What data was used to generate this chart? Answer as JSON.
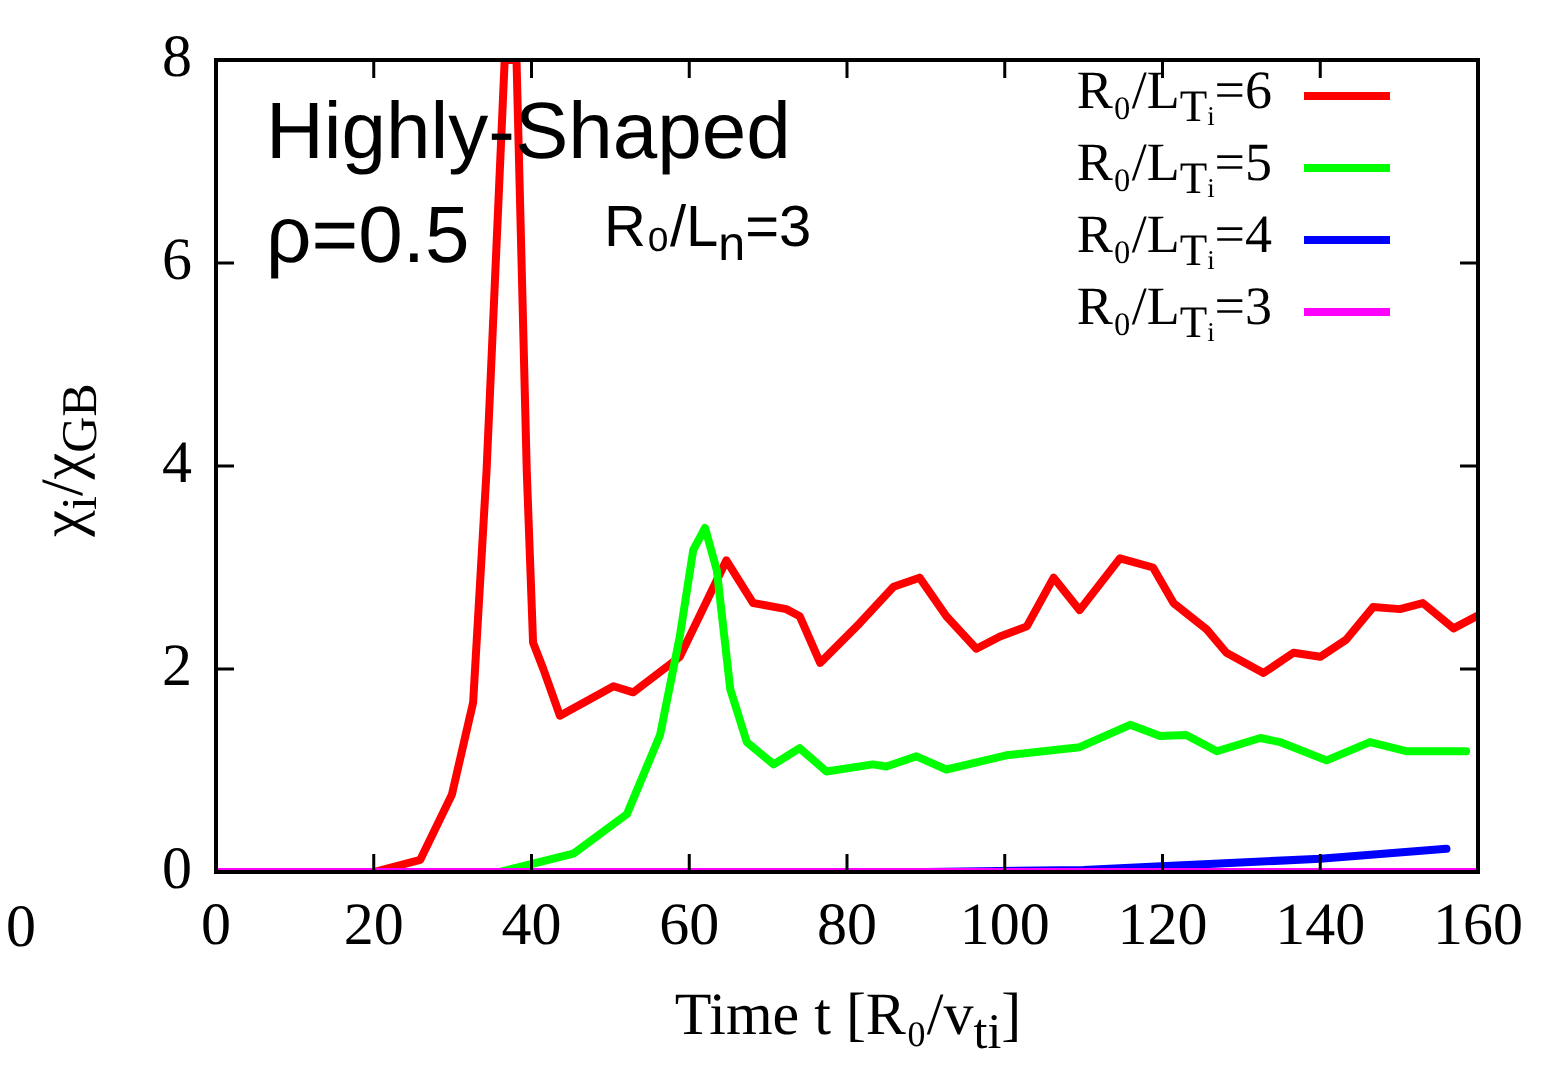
{
  "chart_data": {
    "type": "line",
    "xlabel": "Time t [R₀/v$_{ti}$]",
    "ylabel": "χ$_{i}$/χ$_{GB}$",
    "annotations": [
      "Highly-Shaped",
      "ρ=0.5",
      "R₀/L$_{n}$=3",
      "0"
    ],
    "xlim": [
      0,
      160
    ],
    "xticks": [
      0,
      20,
      40,
      60,
      80,
      100,
      120,
      140,
      160
    ],
    "ylim": [
      0,
      8
    ],
    "yticks": [
      0,
      2,
      4,
      6,
      8
    ],
    "grid": false,
    "legend": "top right",
    "marker": "none",
    "line_style": "solid",
    "series": [
      {
        "name": "R₀/L$_{Tᵢ}$=6",
        "color": "#ff0000",
        "x": [
          0,
          20,
          25.9,
          29.9,
          32.6,
          34.3,
          36.6,
          38.1,
          39.4,
          40.2,
          41.5,
          43.6,
          50.4,
          52.9,
          58.8,
          62.1,
          64.7,
          68.1,
          72.3,
          74,
          76.6,
          81.6,
          85.9,
          89.2,
          92.6,
          96.4,
          99.4,
          102.8,
          106.2,
          109.5,
          114.6,
          118.8,
          121.4,
          125.6,
          128.1,
          132.8,
          136.6,
          140,
          143.3,
          146.7,
          150.1,
          153,
          156.9,
          159.8
        ],
        "values": [
          0,
          0,
          0.12,
          0.76,
          1.67,
          3.95,
          8,
          8,
          3.95,
          2.26,
          2.0,
          1.54,
          1.83,
          1.77,
          2.12,
          2.65,
          3.07,
          2.65,
          2.59,
          2.52,
          2.06,
          2.45,
          2.81,
          2.9,
          2.52,
          2.2,
          2.32,
          2.42,
          2.9,
          2.58,
          3.09,
          3.0,
          2.65,
          2.39,
          2.16,
          1.96,
          2.16,
          2.12,
          2.29,
          2.61,
          2.59,
          2.65,
          2.4,
          2.52
        ]
      },
      {
        "name": "R₀/L$_{Tᵢ}$=5",
        "color": "#00ff00",
        "x": [
          0,
          36,
          45.3,
          52.1,
          56.3,
          58.8,
          60.5,
          62,
          63.5,
          65.2,
          67.3,
          70.7,
          74,
          77.4,
          83.3,
          85,
          88.8,
          92.6,
          100.2,
          109.5,
          115.9,
          119.7,
          123,
          126.9,
          132.4,
          134.9,
          140.8,
          146.3,
          150.9,
          158.5
        ],
        "values": [
          0,
          0,
          0.18,
          0.57,
          1.35,
          2.32,
          3.17,
          3.39,
          2.97,
          1.8,
          1.28,
          1.06,
          1.22,
          0.99,
          1.06,
          1.04,
          1.14,
          1.01,
          1.15,
          1.23,
          1.45,
          1.34,
          1.35,
          1.19,
          1.32,
          1.28,
          1.1,
          1.28,
          1.19,
          1.19
        ]
      },
      {
        "name": "R₀/L$_{Tᵢ}$=4",
        "color": "#0000ff",
        "x": [
          90,
          110,
          120.5,
          140,
          156
        ],
        "values": [
          0,
          0.02,
          0.06,
          0.13,
          0.23
        ]
      },
      {
        "name": "R₀/L$_{Tᵢ}$=3",
        "color": "#ff00ff",
        "x": [
          0,
          160
        ],
        "values": [
          0,
          0
        ]
      }
    ]
  }
}
